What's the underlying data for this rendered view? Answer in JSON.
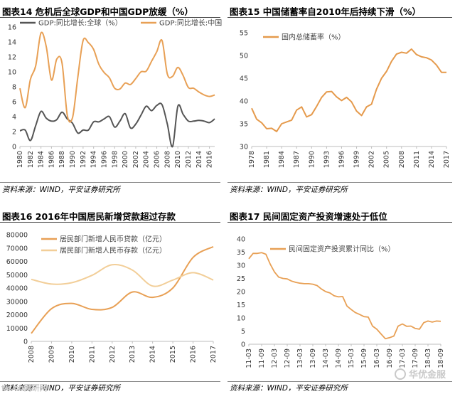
{
  "panels": [
    {
      "id": "fig14",
      "title": "图表14   危机后全球GDP和中国GDP放缓（%）",
      "source": "资料来源：WIND，平安证券研究所"
    },
    {
      "id": "fig15",
      "title": "图表15   中国储蓄率自2010年后持续下滑（%）",
      "source": "资料来源：WIND，平安证券研究所"
    },
    {
      "id": "fig16",
      "title": "图表16   2016年中国居民新增贷款超过存款",
      "source": "资料来源：WIND，平安证券研究所"
    },
    {
      "id": "fig17",
      "title": "图表17   民间固定资产投资增速处于低位",
      "source": "资料来源：WIND，平安证券研究所"
    }
  ],
  "watermark": {
    "left_text": "tu.ch网研网",
    "brand": "华优金服"
  },
  "colors": {
    "orange": "#E8A055",
    "gray": "#555555",
    "light_orange": "#F2CE98",
    "dark_orange": "#E59A4C"
  },
  "chart_data": [
    {
      "id": "fig14",
      "type": "line",
      "x": [
        1980,
        1981,
        1982,
        1983,
        1984,
        1985,
        1986,
        1987,
        1988,
        1989,
        1990,
        1991,
        1992,
        1993,
        1994,
        1995,
        1996,
        1997,
        1998,
        1999,
        2000,
        2001,
        2002,
        2003,
        2004,
        2005,
        2006,
        2007,
        2008,
        2009,
        2010,
        2011,
        2012,
        2013,
        2014,
        2015,
        2016,
        2017
      ],
      "xticks": [
        "1980",
        "1982",
        "1984",
        "1986",
        "1988",
        "1990",
        "1992",
        "1994",
        "1996",
        "1998",
        "2000",
        "2002",
        "2004",
        "2006",
        "2008",
        "2010",
        "2012",
        "2014",
        "2016"
      ],
      "ylim": [
        0,
        16
      ],
      "yticks": [
        0,
        2,
        4,
        6,
        8,
        10,
        12,
        14,
        16
      ],
      "legend_position": "top",
      "series": [
        {
          "name": "GDP:同比增长:全球（%）",
          "color": "#555555",
          "values": [
            2.1,
            2.2,
            0.8,
            2.8,
            4.7,
            3.8,
            3.4,
            3.6,
            4.6,
            3.7,
            3.1,
            1.8,
            2.2,
            2.2,
            3.3,
            3.3,
            3.7,
            4.0,
            2.6,
            3.4,
            4.4,
            2.5,
            3.0,
            4.2,
            5.4,
            4.8,
            5.5,
            5.6,
            3.0,
            0.0,
            5.4,
            4.3,
            3.4,
            3.4,
            3.5,
            3.4,
            3.2,
            3.7
          ]
        },
        {
          "name": "GDP:同比增长:中国（%）",
          "color": "#E8A055",
          "values": [
            7.8,
            5.2,
            9.0,
            10.8,
            15.2,
            13.4,
            8.9,
            11.7,
            11.2,
            4.2,
            3.9,
            9.3,
            14.2,
            13.9,
            13.0,
            11.0,
            9.9,
            9.2,
            7.8,
            7.7,
            8.5,
            8.3,
            9.1,
            10.0,
            10.1,
            11.4,
            12.7,
            14.2,
            9.7,
            9.4,
            10.6,
            9.5,
            7.9,
            7.8,
            7.3,
            6.9,
            6.7,
            6.9
          ]
        }
      ]
    },
    {
      "id": "fig15",
      "type": "line",
      "x": [
        1978,
        1979,
        1980,
        1981,
        1982,
        1983,
        1984,
        1985,
        1986,
        1987,
        1988,
        1989,
        1990,
        1991,
        1992,
        1993,
        1994,
        1995,
        1996,
        1997,
        1998,
        1999,
        2000,
        2001,
        2002,
        2003,
        2004,
        2005,
        2006,
        2007,
        2008,
        2009,
        2010,
        2011,
        2012,
        2013,
        2014,
        2015,
        2016,
        2017
      ],
      "xticks": [
        "1978",
        "1981",
        "1984",
        "1987",
        "1990",
        "1993",
        "1996",
        "1999",
        "2002",
        "2005",
        "2008",
        "2011",
        "2014",
        "2017"
      ],
      "ylim": [
        30,
        55
      ],
      "yticks": [
        30,
        35,
        40,
        45,
        50,
        55
      ],
      "legend_position": "top-left",
      "series": [
        {
          "name": "国内总储蓄率（%）",
          "color": "#E59A4C",
          "values": [
            38.4,
            36.0,
            35.2,
            33.9,
            34.0,
            33.3,
            35.0,
            35.4,
            35.8,
            38.0,
            38.7,
            36.5,
            37.0,
            38.8,
            40.8,
            42.0,
            42.1,
            40.9,
            40.1,
            40.8,
            39.8,
            37.8,
            36.8,
            38.7,
            39.3,
            42.6,
            45.0,
            46.5,
            48.7,
            50.3,
            50.7,
            50.5,
            51.4,
            50.2,
            49.7,
            49.5,
            49.0,
            47.9,
            46.3,
            46.3
          ]
        }
      ]
    },
    {
      "id": "fig16",
      "type": "line",
      "x": [
        2008,
        2009,
        2010,
        2011,
        2012,
        2013,
        2014,
        2015,
        2016,
        2017
      ],
      "xticks": [
        "2008",
        "2009",
        "2010",
        "2011",
        "2012",
        "2013",
        "2014",
        "2015",
        "2016",
        "2017"
      ],
      "ylim": [
        0,
        80000
      ],
      "yticks": [
        0,
        10000,
        20000,
        30000,
        40000,
        50000,
        60000,
        70000,
        80000
      ],
      "legend_position": "top-left",
      "series": [
        {
          "name": "居民部门新增人民币贷款（亿元）",
          "color": "#E8A055",
          "values": [
            6000,
            24500,
            28500,
            24000,
            25500,
            37000,
            33000,
            40000,
            63000,
            71000
          ]
        },
        {
          "name": "居民部门新增人民币存款（亿元）",
          "color": "#F2CE98",
          "values": [
            46500,
            43000,
            44000,
            49500,
            57500,
            53500,
            41500,
            46000,
            51500,
            46000
          ]
        }
      ]
    },
    {
      "id": "fig17",
      "type": "line",
      "x": [
        "11-03",
        "11-05",
        "11-07",
        "11-09",
        "11-11",
        "12-01",
        "12-03",
        "12-05",
        "12-07",
        "12-09",
        "12-11",
        "13-01",
        "13-03",
        "13-05",
        "13-07",
        "13-09",
        "13-11",
        "14-01",
        "14-03",
        "14-05",
        "14-07",
        "14-09",
        "14-11",
        "15-01",
        "15-03",
        "15-05",
        "15-07",
        "15-09",
        "15-11",
        "16-01",
        "16-03",
        "16-05",
        "16-07",
        "16-09",
        "16-11",
        "17-01",
        "17-03",
        "17-05",
        "17-07",
        "17-09",
        "17-11",
        "18-01",
        "18-03",
        "18-05",
        "18-07",
        "18-09"
      ],
      "xticks": [
        "11-03",
        "11-09",
        "12-03",
        "12-09",
        "13-03",
        "13-09",
        "14-03",
        "14-09",
        "15-03",
        "15-09",
        "16-03",
        "16-09",
        "17-03",
        "17-09",
        "18-03",
        "18-09"
      ],
      "ylim": [
        0,
        40
      ],
      "yticks": [
        0,
        5,
        10,
        15,
        20,
        25,
        30,
        35,
        40
      ],
      "legend_position": "top",
      "series": [
        {
          "name": "民间固定资产投资累计同比（%）",
          "color": "#E8A055",
          "values": [
            32.5,
            34.5,
            34.5,
            34.8,
            34.2,
            30.5,
            27.5,
            25.5,
            25.0,
            24.8,
            24.0,
            23.5,
            23.2,
            23.0,
            23.0,
            22.8,
            22.3,
            21.0,
            20.0,
            19.5,
            18.4,
            18.0,
            18.1,
            14.5,
            13.2,
            12.0,
            11.3,
            10.5,
            10.3,
            6.9,
            5.7,
            3.9,
            2.1,
            2.5,
            3.1,
            6.9,
            7.7,
            6.8,
            6.9,
            6.0,
            5.7,
            8.2,
            8.8,
            8.4,
            8.8,
            8.7
          ]
        }
      ]
    }
  ]
}
